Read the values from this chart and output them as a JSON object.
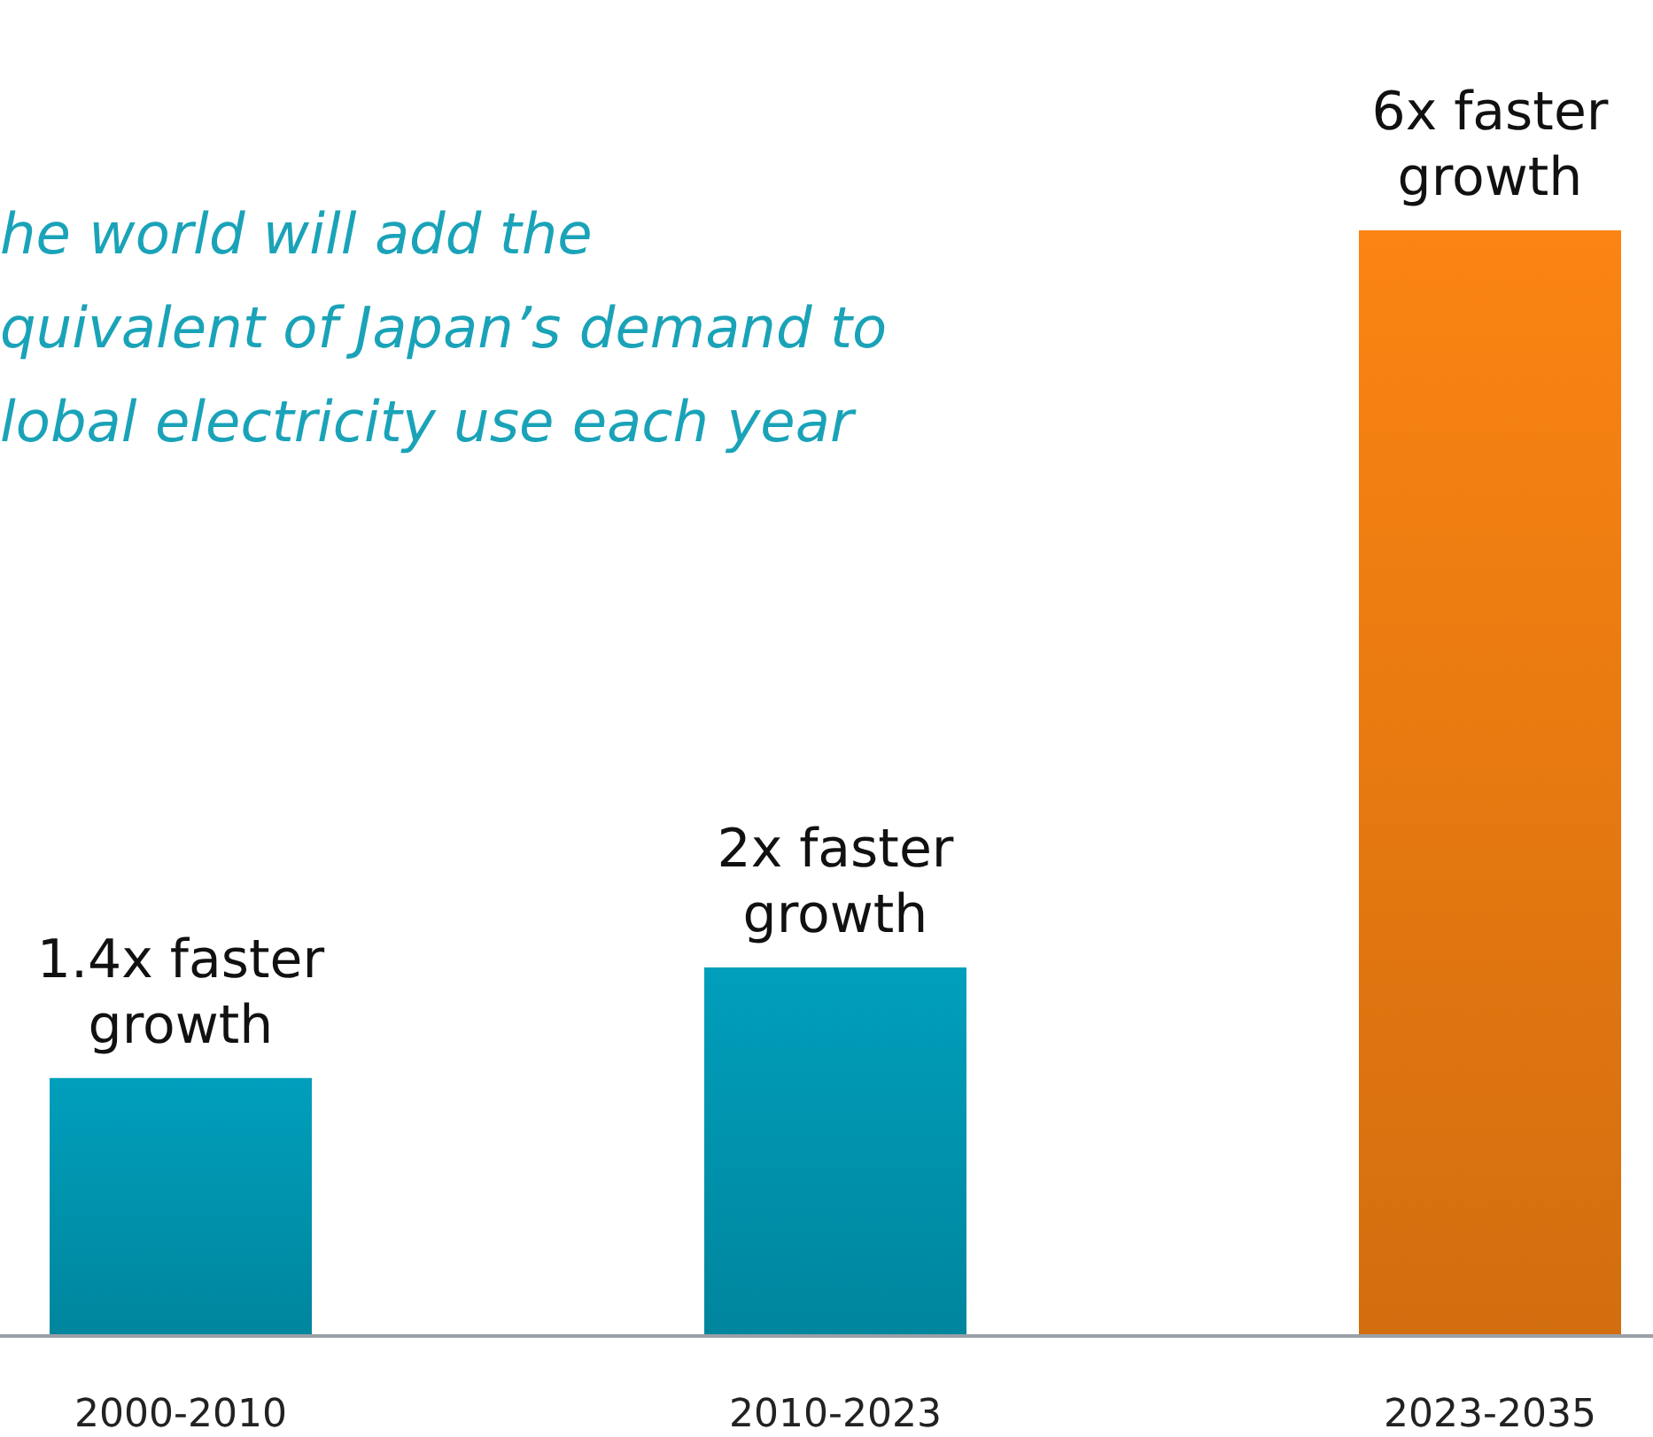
{
  "chart_data": {
    "type": "bar",
    "ylim": [
      0,
      6
    ],
    "categories": [
      "2000-2010",
      "2010-2023",
      "2023-2035"
    ],
    "values": [
      1.4,
      2,
      6
    ],
    "colors": [
      "#0097b2",
      "#0097b2",
      "#ee7d11"
    ],
    "value_labels": [
      "1.4x faster growth",
      "2x faster growth",
      "6x faster growth"
    ],
    "annotations": [
      "he world will add the\nquivalent of Japan’s demand to\nlobal electricity use each year"
    ]
  }
}
